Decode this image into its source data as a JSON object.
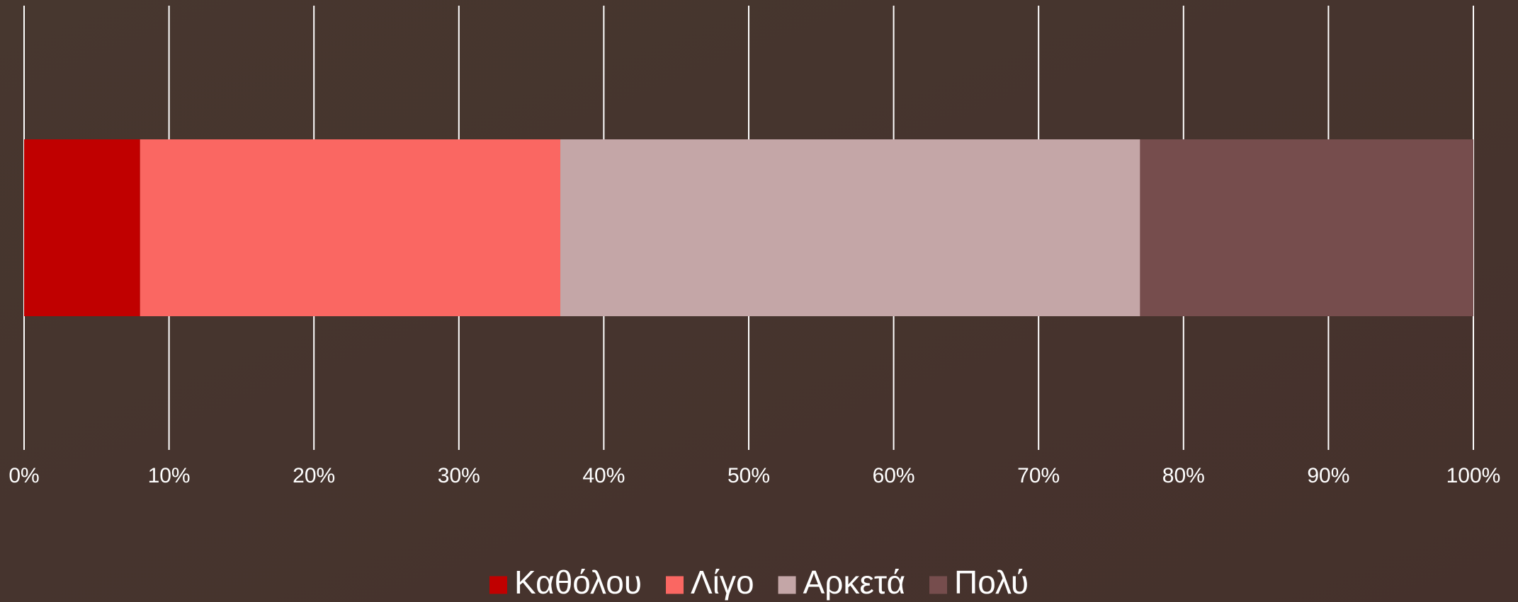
{
  "chart_data": {
    "type": "bar",
    "orientation": "horizontal",
    "stacked": true,
    "series": [
      {
        "name": "Καθόλου",
        "color": "#c00000",
        "values": [
          8
        ]
      },
      {
        "name": "Λίγο",
        "color": "#fa6762",
        "values": [
          29
        ]
      },
      {
        "name": "Αρκετά",
        "color": "#c4a6a7",
        "values": [
          40
        ]
      },
      {
        "name": "Πολύ",
        "color": "#764d4d",
        "values": [
          23
        ]
      }
    ],
    "xlim": [
      0,
      100
    ],
    "xticks": [
      {
        "value": 0,
        "label": "0%"
      },
      {
        "value": 10,
        "label": "10%"
      },
      {
        "value": 20,
        "label": "20%"
      },
      {
        "value": 30,
        "label": "30%"
      },
      {
        "value": 40,
        "label": "40%"
      },
      {
        "value": 50,
        "label": "50%"
      },
      {
        "value": 60,
        "label": "60%"
      },
      {
        "value": 70,
        "label": "70%"
      },
      {
        "value": 80,
        "label": "80%"
      },
      {
        "value": 90,
        "label": "90%"
      },
      {
        "value": 100,
        "label": "100%"
      }
    ],
    "grid": true,
    "legend": "bottom"
  }
}
